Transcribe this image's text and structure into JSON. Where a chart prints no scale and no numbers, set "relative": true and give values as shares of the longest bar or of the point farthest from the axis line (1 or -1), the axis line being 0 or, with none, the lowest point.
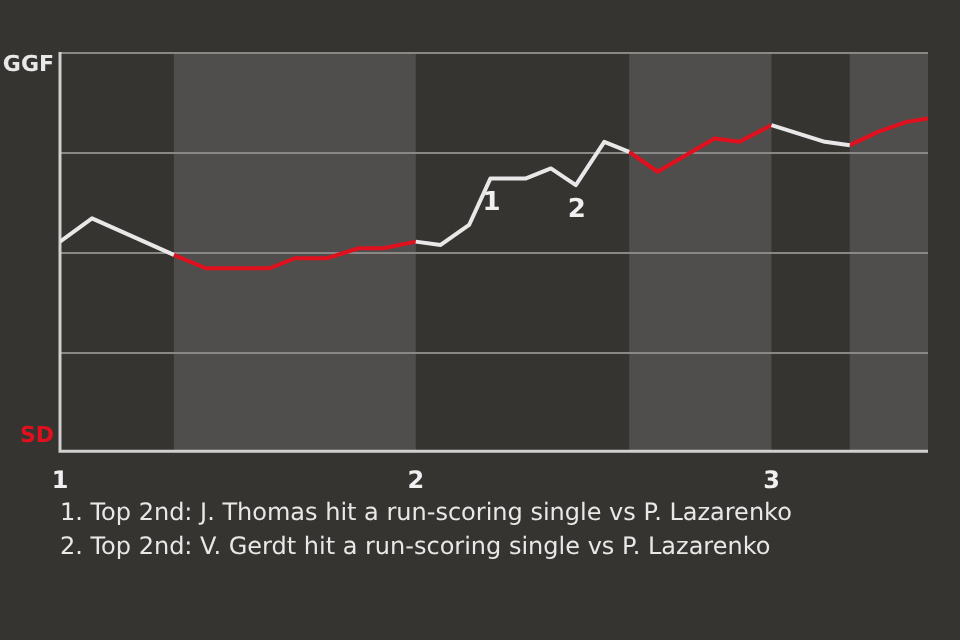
{
  "chart_data": {
    "type": "line",
    "relative": true,
    "xlim": [
      1,
      3.44
    ],
    "xticks": [
      1,
      2,
      3
    ],
    "grid": "y",
    "legend": "left",
    "marker": "none",
    "line_style": "solid",
    "bands": [
      {
        "axis": "x",
        "from": 1.32,
        "to": 2,
        "color": "#4f4e4c"
      },
      {
        "axis": "x",
        "from": 2.6,
        "to": 3,
        "color": "#4f4e4c"
      },
      {
        "axis": "x",
        "from": 3.22,
        "to": 3.44,
        "color": "#4f4e4c"
      }
    ],
    "series": [
      {
        "name": "GGF",
        "color": "#e8e8e8",
        "x": [
          1,
          1.09,
          1.32,
          1.66,
          2,
          2.07,
          2.15,
          2.21,
          2.31,
          2.38,
          2.45,
          2.53,
          2.6,
          2.8,
          3,
          3.15,
          3.22
        ],
        "values": [
          0.63,
          0.7,
          0.59,
          null,
          0.63,
          0.62,
          0.68,
          0.82,
          0.82,
          0.85,
          0.8,
          0.93,
          0.9,
          null,
          0.98,
          0.93,
          0.92
        ]
      },
      {
        "name": "SD",
        "color": "#e0101e",
        "x": [
          1.32,
          1.41,
          1.59,
          1.66,
          1.75,
          1.84,
          1.91,
          2,
          2.3,
          2.6,
          2.68,
          2.84,
          2.91,
          3,
          3.1,
          3.22,
          3.3,
          3.38,
          3.44
        ],
        "values": [
          0.59,
          0.55,
          0.55,
          0.58,
          0.58,
          0.61,
          0.61,
          0.63,
          null,
          0.9,
          0.84,
          0.94,
          0.93,
          0.98,
          null,
          0.92,
          0.96,
          0.99,
          1
        ]
      }
    ],
    "annotations": [
      {
        "text": "1",
        "x": 2.21,
        "y": 0.82
      },
      {
        "text": "2",
        "x": 2.45,
        "y": 0.8
      },
      "1. Top 2nd: J. Thomas hit a run-scoring single vs P. Lazarenko",
      "2. Top 2nd: V. Gerdt hit a run-scoring single vs P. Lazarenko"
    ]
  }
}
